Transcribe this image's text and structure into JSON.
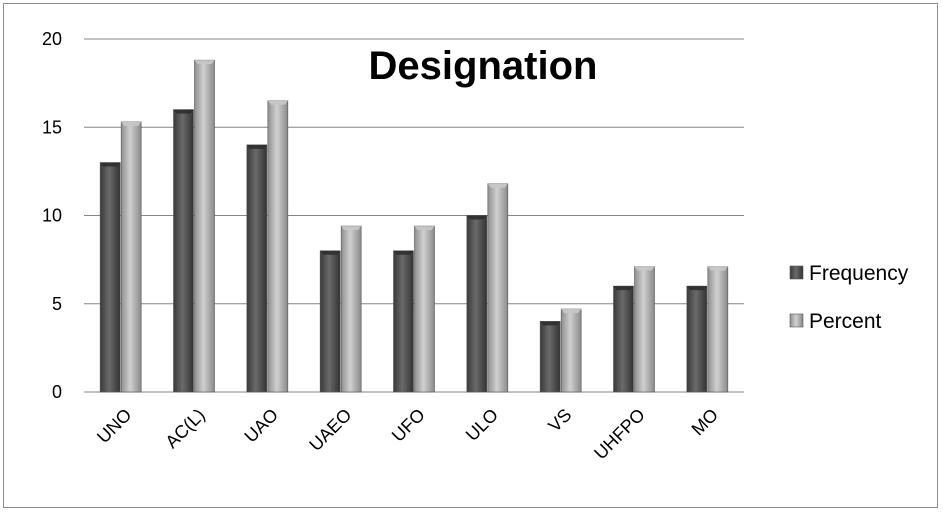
{
  "chart_data": {
    "type": "bar",
    "title": "Designation",
    "xlabel": "",
    "ylabel": "",
    "categories": [
      "UNO",
      "AC(L)",
      "UAO",
      "UAEO",
      "UFO",
      "ULO",
      "VS",
      "UHFPO",
      "MO"
    ],
    "series": [
      {
        "name": "Frequency",
        "values": [
          13,
          16,
          14,
          8,
          8,
          10,
          4,
          6,
          6
        ],
        "color": "#4a4a4a"
      },
      {
        "name": "Percent",
        "values": [
          15.3,
          18.8,
          16.5,
          9.4,
          9.4,
          11.8,
          4.7,
          7.1,
          7.1
        ],
        "color": "#a6a6a6"
      }
    ],
    "ylim": [
      0,
      20
    ],
    "yticks": [
      0,
      5,
      10,
      15,
      20
    ],
    "grid": true,
    "legend": "right"
  }
}
